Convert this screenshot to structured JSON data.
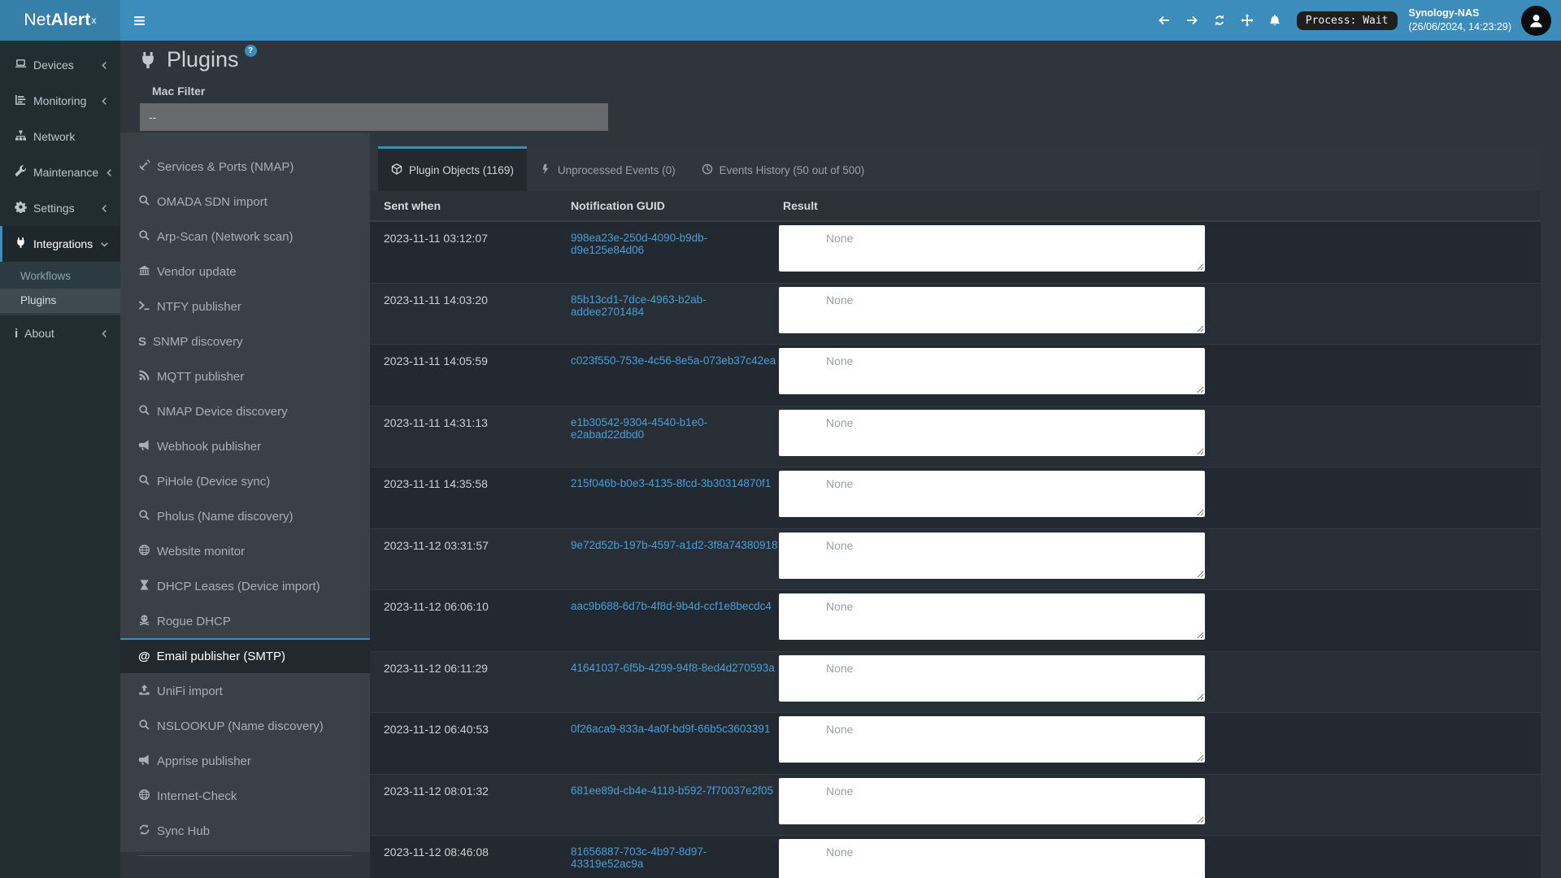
{
  "colors": {
    "accent": "#3c8dbc",
    "link": "#4a9fd8"
  },
  "navbar": {
    "brand": {
      "prefix": "Net",
      "bold": "Alert",
      "sup": "x"
    },
    "icons": [
      "arrow-left",
      "arrow-right",
      "refresh",
      "move",
      "bell"
    ],
    "process_status": "Process: Wait",
    "host_name": "Synology-NAS",
    "host_time": "(26/06/2024, 14:23:29)"
  },
  "sidebar": {
    "items": [
      {
        "label": "Devices",
        "icon": "laptop",
        "chevron": "left"
      },
      {
        "label": "Monitoring",
        "icon": "chart",
        "chevron": "left"
      },
      {
        "label": "Network",
        "icon": "sitemap",
        "chevron": null
      },
      {
        "label": "Maintenance",
        "icon": "wrench",
        "chevron": "left"
      },
      {
        "label": "Settings",
        "icon": "gear",
        "chevron": "left"
      },
      {
        "label": "Integrations",
        "icon": "plug",
        "chevron": "down",
        "active": true,
        "children": [
          {
            "label": "Workflows"
          },
          {
            "label": "Plugins",
            "selected": true
          }
        ]
      },
      {
        "label": "About",
        "icon": "txt:i",
        "chevron": "left"
      }
    ]
  },
  "page": {
    "title": "Plugins",
    "help_badge": "?"
  },
  "filter": {
    "label": "Mac Filter",
    "value": "--"
  },
  "plugins_list": [
    {
      "label": "Services & Ports (NMAP)",
      "icon": "satellite"
    },
    {
      "label": "OMADA SDN import",
      "icon": "search"
    },
    {
      "label": "Arp-Scan (Network scan)",
      "icon": "search"
    },
    {
      "label": "Vendor update",
      "icon": "bank"
    },
    {
      "label": "NTFY publisher",
      "icon": "terminal"
    },
    {
      "label": "SNMP discovery",
      "icon": "txt:S"
    },
    {
      "label": "MQTT publisher",
      "icon": "rss"
    },
    {
      "label": "NMAP Device discovery",
      "icon": "search"
    },
    {
      "label": "Webhook publisher",
      "icon": "bullhorn"
    },
    {
      "label": "PiHole (Device sync)",
      "icon": "search"
    },
    {
      "label": "Pholus (Name discovery)",
      "icon": "search"
    },
    {
      "label": "Website monitor",
      "icon": "globe"
    },
    {
      "label": "DHCP Leases (Device import)",
      "icon": "hourglass"
    },
    {
      "label": "Rogue DHCP",
      "icon": "skull"
    },
    {
      "label": "Email publisher (SMTP)",
      "icon": "txt:@",
      "selected": true
    },
    {
      "label": "UniFi import",
      "icon": "upload"
    },
    {
      "label": "NSLOOKUP (Name discovery)",
      "icon": "search"
    },
    {
      "label": "Apprise publisher",
      "icon": "bullhorn"
    },
    {
      "label": "Internet-Check",
      "icon": "globe"
    },
    {
      "label": "Sync Hub",
      "icon": "sync"
    }
  ],
  "tabs": [
    {
      "label": "Plugin Objects (1169)",
      "icon": "cube",
      "active": true
    },
    {
      "label": "Unprocessed Events (0)",
      "icon": "bolt"
    },
    {
      "label": "Events History (50 out of 500)",
      "icon": "clock"
    }
  ],
  "table": {
    "columns": [
      "Sent when",
      "Notification GUID",
      "Result"
    ],
    "result_placeholder": "None",
    "rows": [
      {
        "sent": "2023-11-11 03:12:07",
        "guid": "998ea23e-250d-4090-b9db-d9e125e84d06"
      },
      {
        "sent": "2023-11-11 14:03:20",
        "guid": "85b13cd1-7dce-4963-b2ab-addee2701484"
      },
      {
        "sent": "2023-11-11 14:05:59",
        "guid": "c023f550-753e-4c56-8e5a-073eb37c42ea"
      },
      {
        "sent": "2023-11-11 14:31:13",
        "guid": "e1b30542-9304-4540-b1e0-e2abad22dbd0"
      },
      {
        "sent": "2023-11-11 14:35:58",
        "guid": "215f046b-b0e3-4135-8fcd-3b30314870f1"
      },
      {
        "sent": "2023-11-12 03:31:57",
        "guid": "9e72d52b-197b-4597-a1d2-3f8a74380918"
      },
      {
        "sent": "2023-11-12 06:06:10",
        "guid": "aac9b688-6d7b-4f8d-9b4d-ccf1e8becdc4"
      },
      {
        "sent": "2023-11-12 06:11:29",
        "guid": "41641037-6f5b-4299-94f8-8ed4d270593a"
      },
      {
        "sent": "2023-11-12 06:40:53",
        "guid": "0f26aca9-833a-4a0f-bd9f-66b5c3603391"
      },
      {
        "sent": "2023-11-12 08:01:32",
        "guid": "681ee89d-cb4e-4118-b592-7f70037e2f05"
      },
      {
        "sent": "2023-11-12 08:46:08",
        "guid": "81656887-703c-4b97-8d97-43319e52ac9a"
      }
    ]
  }
}
